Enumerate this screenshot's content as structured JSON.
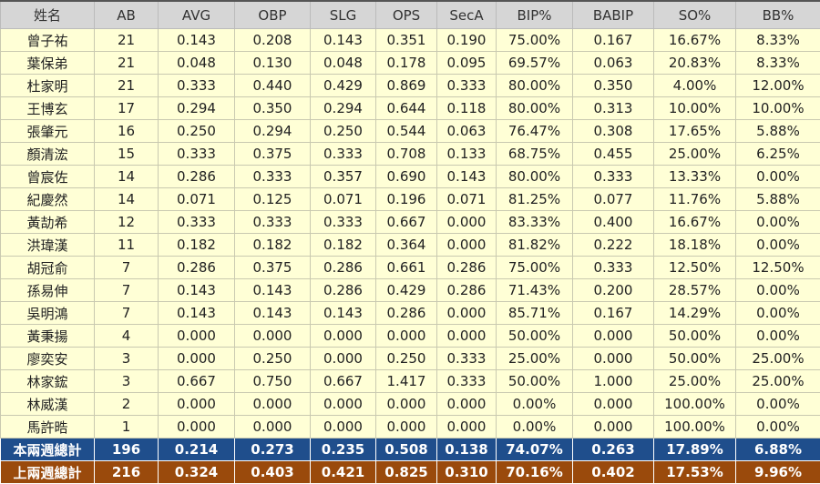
{
  "colors": {
    "header": "#d6d6d6",
    "row": "#ffffd6",
    "total_current": "#1f4e8c",
    "total_prev": "#9a4a0c"
  },
  "columns": [
    "姓名",
    "AB",
    "AVG",
    "OBP",
    "SLG",
    "OPS",
    "SecA",
    "BIP%",
    "BABIP",
    "SO%",
    "BB%"
  ],
  "rows": [
    [
      "曾子祐",
      "21",
      "0.143",
      "0.208",
      "0.143",
      "0.351",
      "0.190",
      "75.00%",
      "0.167",
      "16.67%",
      "8.33%"
    ],
    [
      "葉保弟",
      "21",
      "0.048",
      "0.130",
      "0.048",
      "0.178",
      "0.095",
      "69.57%",
      "0.063",
      "20.83%",
      "8.33%"
    ],
    [
      "杜家明",
      "21",
      "0.333",
      "0.440",
      "0.429",
      "0.869",
      "0.333",
      "80.00%",
      "0.350",
      "4.00%",
      "12.00%"
    ],
    [
      "王博玄",
      "17",
      "0.294",
      "0.350",
      "0.294",
      "0.644",
      "0.118",
      "80.00%",
      "0.313",
      "10.00%",
      "10.00%"
    ],
    [
      "張肇元",
      "16",
      "0.250",
      "0.294",
      "0.250",
      "0.544",
      "0.063",
      "76.47%",
      "0.308",
      "17.65%",
      "5.88%"
    ],
    [
      "顏清浤",
      "15",
      "0.333",
      "0.375",
      "0.333",
      "0.708",
      "0.133",
      "68.75%",
      "0.455",
      "25.00%",
      "6.25%"
    ],
    [
      "曾宸佐",
      "14",
      "0.286",
      "0.333",
      "0.357",
      "0.690",
      "0.143",
      "80.00%",
      "0.333",
      "13.33%",
      "0.00%"
    ],
    [
      "紀慶然",
      "14",
      "0.071",
      "0.125",
      "0.071",
      "0.196",
      "0.071",
      "81.25%",
      "0.077",
      "11.76%",
      "5.88%"
    ],
    [
      "黃劼希",
      "12",
      "0.333",
      "0.333",
      "0.333",
      "0.667",
      "0.000",
      "83.33%",
      "0.400",
      "16.67%",
      "0.00%"
    ],
    [
      "洪瑋漢",
      "11",
      "0.182",
      "0.182",
      "0.182",
      "0.364",
      "0.000",
      "81.82%",
      "0.222",
      "18.18%",
      "0.00%"
    ],
    [
      "胡冠俞",
      "7",
      "0.286",
      "0.375",
      "0.286",
      "0.661",
      "0.286",
      "75.00%",
      "0.333",
      "12.50%",
      "12.50%"
    ],
    [
      "孫易伸",
      "7",
      "0.143",
      "0.143",
      "0.286",
      "0.429",
      "0.286",
      "71.43%",
      "0.200",
      "28.57%",
      "0.00%"
    ],
    [
      "吳明鴻",
      "7",
      "0.143",
      "0.143",
      "0.143",
      "0.286",
      "0.000",
      "85.71%",
      "0.167",
      "14.29%",
      "0.00%"
    ],
    [
      "黃秉揚",
      "4",
      "0.000",
      "0.000",
      "0.000",
      "0.000",
      "0.000",
      "50.00%",
      "0.000",
      "50.00%",
      "0.00%"
    ],
    [
      "廖奕安",
      "3",
      "0.000",
      "0.250",
      "0.000",
      "0.250",
      "0.333",
      "25.00%",
      "0.000",
      "50.00%",
      "25.00%"
    ],
    [
      "林家鋐",
      "3",
      "0.667",
      "0.750",
      "0.667",
      "1.417",
      "0.333",
      "50.00%",
      "1.000",
      "25.00%",
      "25.00%"
    ],
    [
      "林威漢",
      "2",
      "0.000",
      "0.000",
      "0.000",
      "0.000",
      "0.000",
      "0.00%",
      "0.000",
      "100.00%",
      "0.00%"
    ],
    [
      "馬許晧",
      "1",
      "0.000",
      "0.000",
      "0.000",
      "0.000",
      "0.000",
      "0.00%",
      "0.000",
      "100.00%",
      "0.00%"
    ]
  ],
  "totals": {
    "current": [
      "本兩週總計",
      "196",
      "0.214",
      "0.273",
      "0.235",
      "0.508",
      "0.138",
      "74.07%",
      "0.263",
      "17.89%",
      "6.88%"
    ],
    "previous": [
      "上兩週總計",
      "216",
      "0.324",
      "0.403",
      "0.421",
      "0.825",
      "0.310",
      "70.16%",
      "0.402",
      "17.53%",
      "9.96%"
    ]
  }
}
